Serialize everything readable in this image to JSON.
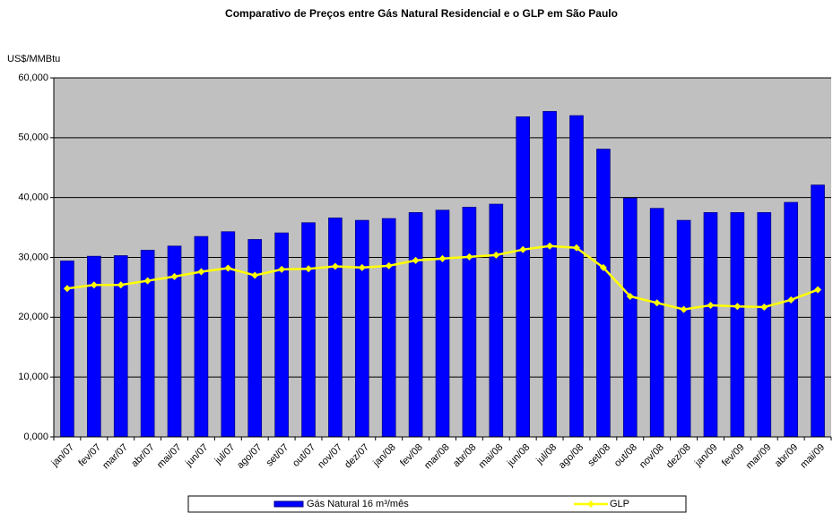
{
  "chart_data": {
    "type": "bar_line",
    "title": "Comparativo de Preços entre Gás Natural Residencial e o GLP em São Paulo",
    "y_axis_label": "US$/MMBtu",
    "categories": [
      "jan/07",
      "fev/07",
      "mar/07",
      "abr/07",
      "mai/07",
      "jun/07",
      "jul/07",
      "ago/07",
      "set/07",
      "out/07",
      "nov/07",
      "dez/07",
      "jan/08",
      "fev/08",
      "mar/08",
      "abr/08",
      "mai/08",
      "jun/08",
      "jul/08",
      "ago/08",
      "set/08",
      "out/08",
      "nov/08",
      "dez/08",
      "jan/09",
      "fev/09",
      "mar/09",
      "abr/09",
      "mai/09"
    ],
    "series": [
      {
        "name": "Gás Natural 16 m³/mês",
        "type": "bar",
        "color": "#0000ff",
        "values": [
          29.4,
          30.2,
          30.3,
          31.2,
          31.9,
          33.5,
          34.3,
          33.0,
          34.1,
          35.8,
          36.6,
          36.2,
          36.5,
          37.5,
          37.9,
          38.4,
          38.9,
          53.5,
          54.4,
          53.7,
          48.1,
          39.9,
          38.2,
          36.2,
          37.5,
          37.5,
          37.5,
          39.2,
          42.1
        ]
      },
      {
        "name": "GLP",
        "type": "line",
        "color": "#ffff00",
        "values": [
          24.8,
          25.4,
          25.4,
          26.1,
          26.8,
          27.6,
          28.2,
          27.0,
          28.0,
          28.1,
          28.5,
          28.3,
          28.6,
          29.5,
          29.8,
          30.1,
          30.4,
          31.3,
          31.9,
          31.6,
          28.3,
          23.5,
          22.4,
          21.3,
          22.0,
          21.8,
          21.7,
          22.9,
          24.6
        ]
      }
    ],
    "ylim": [
      0,
      60
    ],
    "yticks": [
      {
        "value": 0,
        "label": "0,000"
      },
      {
        "value": 10,
        "label": "10,000"
      },
      {
        "value": 20,
        "label": "20,000"
      },
      {
        "value": 30,
        "label": "30,000"
      },
      {
        "value": 40,
        "label": "40,000"
      },
      {
        "value": 50,
        "label": "50,000"
      },
      {
        "value": 60,
        "label": "60,000"
      }
    ],
    "grid": true,
    "legend": "bottom"
  }
}
